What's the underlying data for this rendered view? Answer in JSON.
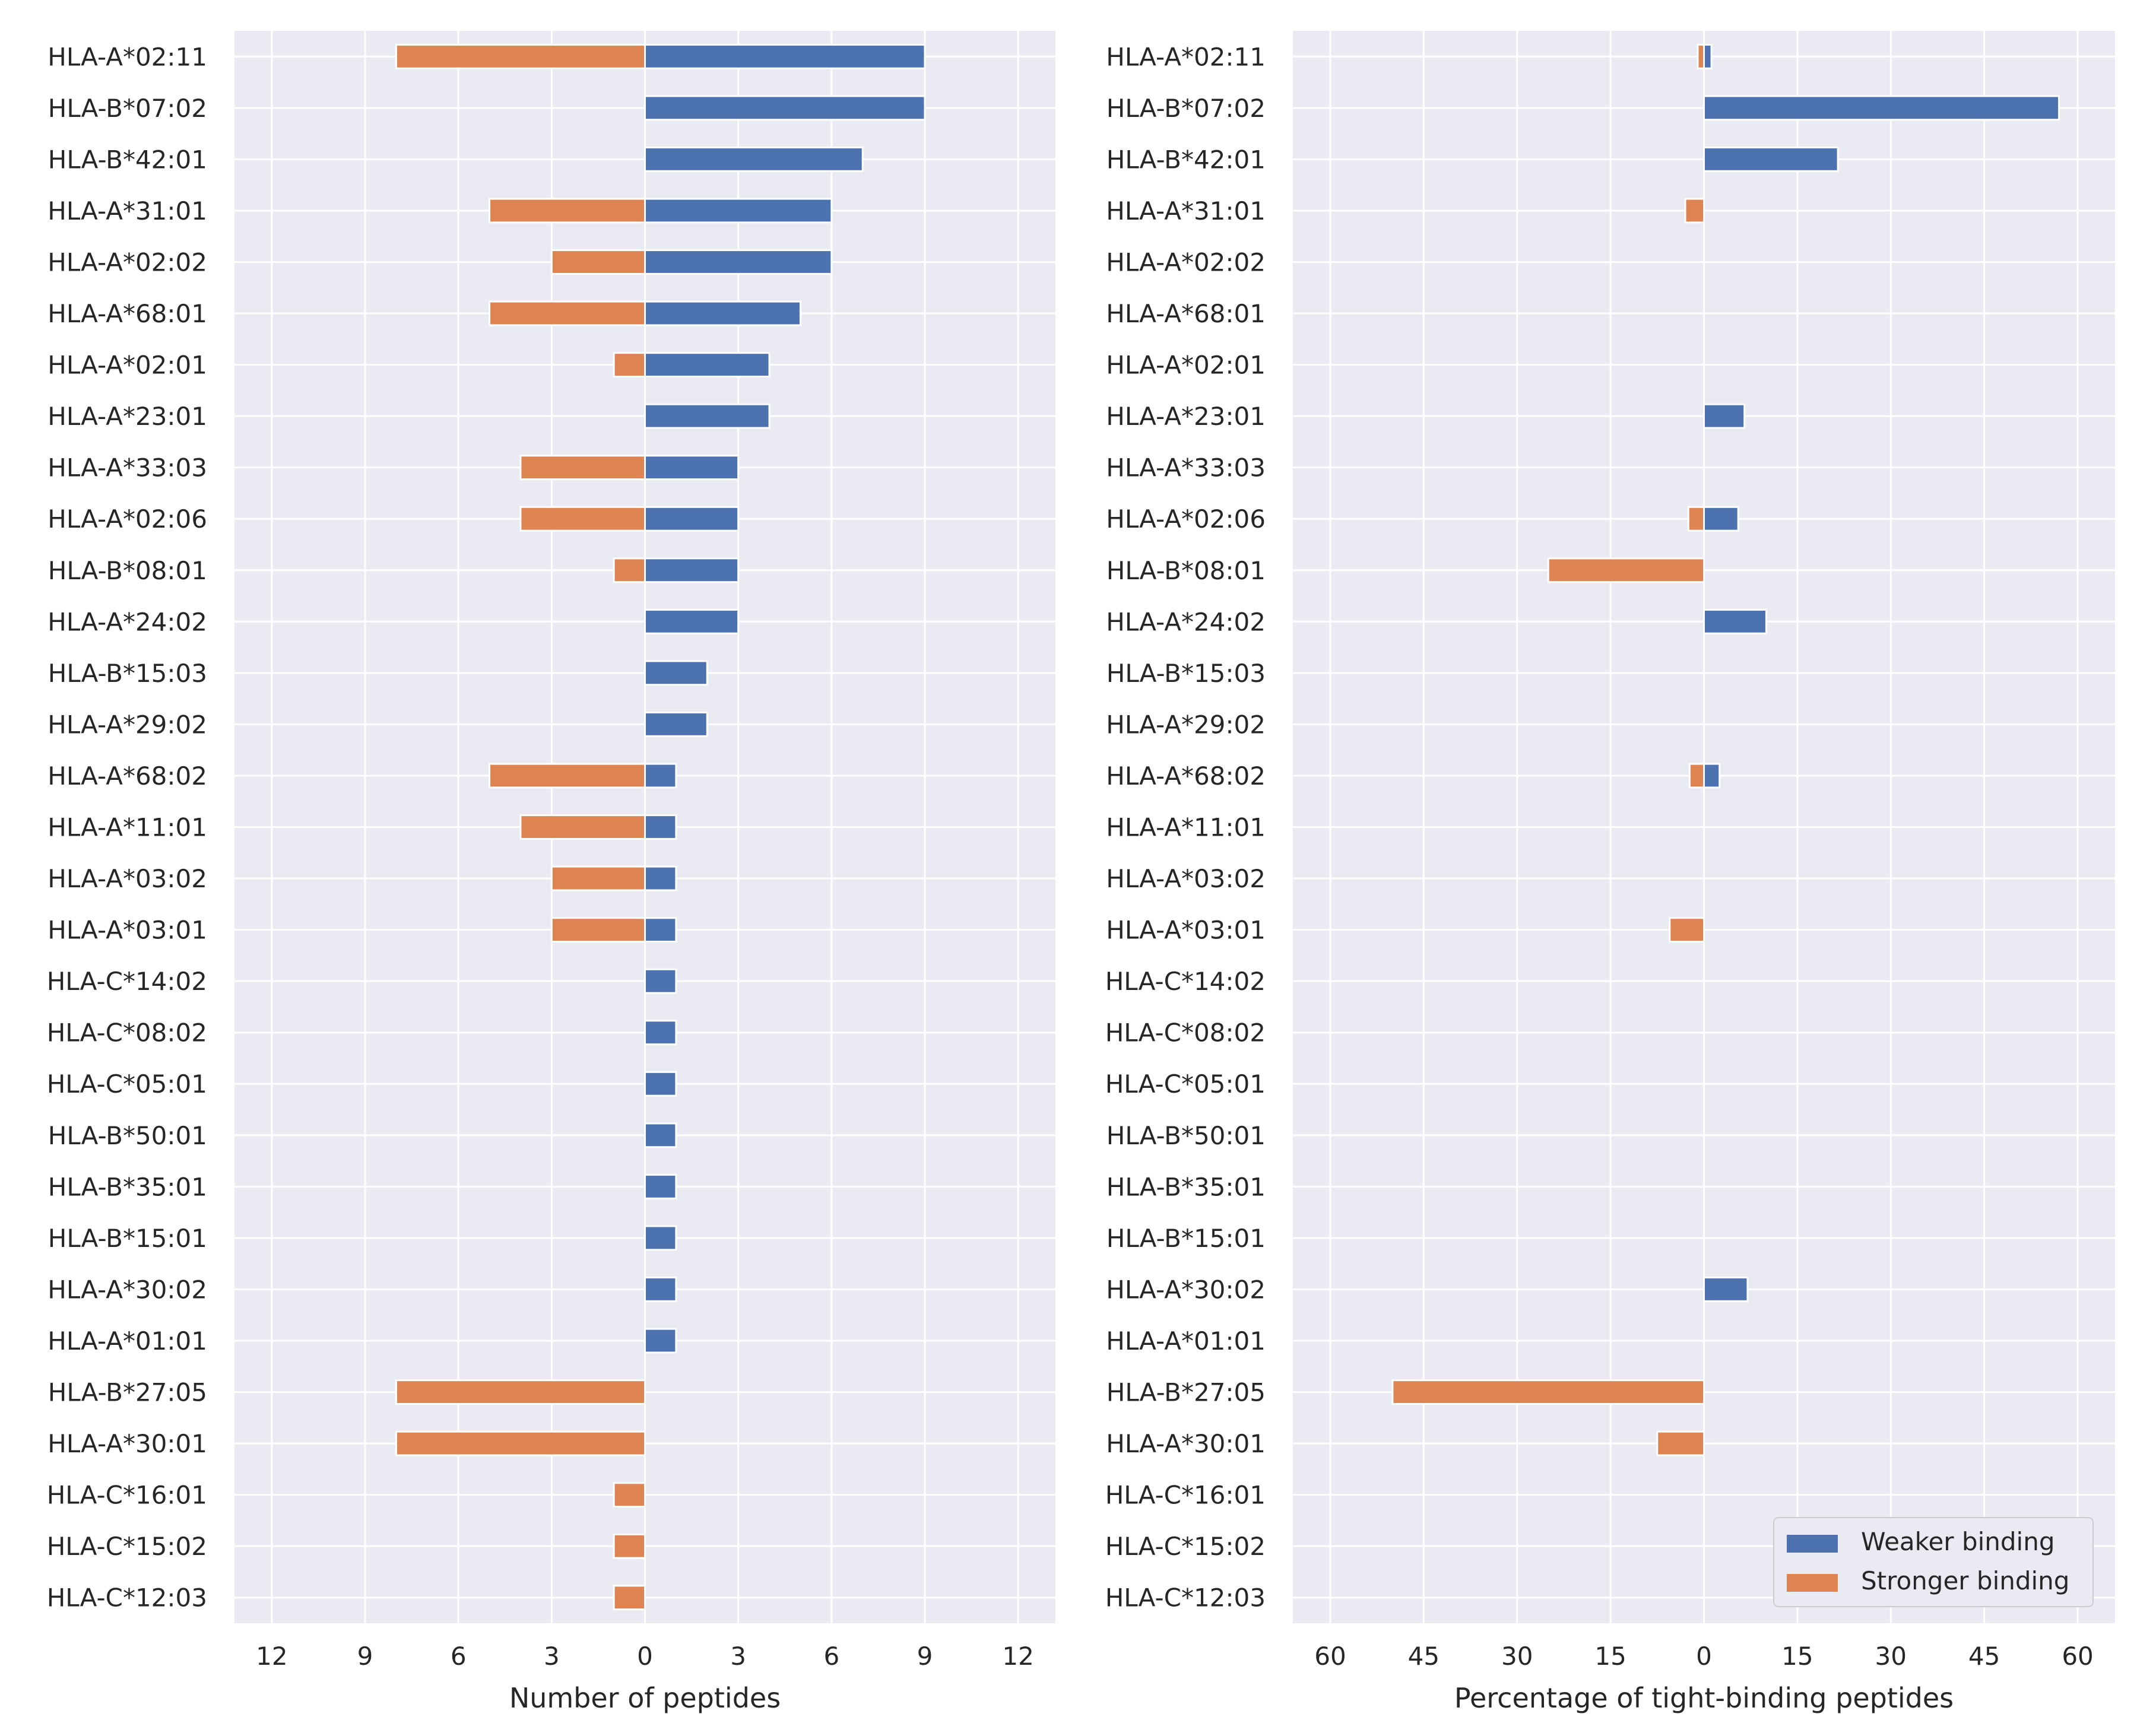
{
  "colors": {
    "weaker": "#4c72b0",
    "stronger": "#dd8452",
    "panel_bg": "#eaeaf2",
    "grid": "#ffffff",
    "text": "#262626"
  },
  "legend": {
    "placement": "bottom-right",
    "items": [
      {
        "label": "Weaker binding",
        "color": "#4c72b0"
      },
      {
        "label": "Stronger binding",
        "color": "#dd8452"
      }
    ]
  },
  "chart_data": [
    {
      "type": "bar",
      "orientation": "horizontal-diverging",
      "title": "",
      "xlabel": "Number of peptides",
      "ylabel": "",
      "xlim": [
        -13.2,
        13.2
      ],
      "xticks": [
        -12,
        -9,
        -6,
        -3,
        0,
        3,
        6,
        9,
        12
      ],
      "xtick_labels": [
        "12",
        "9",
        "6",
        "3",
        "0",
        "3",
        "6",
        "9",
        "12"
      ],
      "grid": true,
      "categories": [
        "HLA-A*02:11",
        "HLA-B*07:02",
        "HLA-B*42:01",
        "HLA-A*31:01",
        "HLA-A*02:02",
        "HLA-A*68:01",
        "HLA-A*02:01",
        "HLA-A*23:01",
        "HLA-A*33:03",
        "HLA-A*02:06",
        "HLA-B*08:01",
        "HLA-A*24:02",
        "HLA-B*15:03",
        "HLA-A*29:02",
        "HLA-A*68:02",
        "HLA-A*11:01",
        "HLA-A*03:02",
        "HLA-A*03:01",
        "HLA-C*14:02",
        "HLA-C*08:02",
        "HLA-C*05:01",
        "HLA-B*50:01",
        "HLA-B*35:01",
        "HLA-B*15:01",
        "HLA-A*30:02",
        "HLA-A*01:01",
        "HLA-B*27:05",
        "HLA-A*30:01",
        "HLA-C*16:01",
        "HLA-C*15:02",
        "HLA-C*12:03"
      ],
      "series": [
        {
          "name": "Weaker binding",
          "direction": "right",
          "values": [
            9,
            9,
            7,
            6,
            6,
            5,
            4,
            4,
            3,
            3,
            3,
            3,
            2,
            2,
            1,
            1,
            1,
            1,
            1,
            1,
            1,
            1,
            1,
            1,
            1,
            1,
            0,
            0,
            0,
            0,
            0
          ]
        },
        {
          "name": "Stronger binding",
          "direction": "left",
          "values": [
            8,
            0,
            0,
            5,
            3,
            5,
            1,
            0,
            4,
            4,
            1,
            0,
            0,
            0,
            5,
            4,
            3,
            3,
            0,
            0,
            0,
            0,
            0,
            0,
            0,
            0,
            8,
            8,
            1,
            1,
            1
          ]
        }
      ]
    },
    {
      "type": "bar",
      "orientation": "horizontal-diverging",
      "title": "",
      "xlabel": "Percentage of tight-binding peptides",
      "ylabel": "",
      "xlim": [
        -66,
        66
      ],
      "xticks": [
        -60,
        -45,
        -30,
        -15,
        0,
        15,
        30,
        45,
        60
      ],
      "xtick_labels": [
        "60",
        "45",
        "30",
        "15",
        "0",
        "15",
        "30",
        "45",
        "60"
      ],
      "grid": true,
      "categories": [
        "HLA-A*02:11",
        "HLA-B*07:02",
        "HLA-B*42:01",
        "HLA-A*31:01",
        "HLA-A*02:02",
        "HLA-A*68:01",
        "HLA-A*02:01",
        "HLA-A*23:01",
        "HLA-A*33:03",
        "HLA-A*02:06",
        "HLA-B*08:01",
        "HLA-A*24:02",
        "HLA-B*15:03",
        "HLA-A*29:02",
        "HLA-A*68:02",
        "HLA-A*11:01",
        "HLA-A*03:02",
        "HLA-A*03:01",
        "HLA-C*14:02",
        "HLA-C*08:02",
        "HLA-C*05:01",
        "HLA-B*50:01",
        "HLA-B*35:01",
        "HLA-B*15:01",
        "HLA-A*30:02",
        "HLA-A*01:01",
        "HLA-B*27:05",
        "HLA-A*30:01",
        "HLA-C*16:01",
        "HLA-C*15:02",
        "HLA-C*12:03"
      ],
      "series": [
        {
          "name": "Weaker binding",
          "direction": "right",
          "values": [
            1.2,
            57,
            21.5,
            0,
            0,
            0,
            0,
            6.5,
            0,
            5.5,
            0,
            10,
            0,
            0,
            2.5,
            0,
            0,
            0,
            0,
            0,
            0,
            0,
            0,
            0,
            7,
            0,
            0,
            0,
            0,
            0,
            0
          ]
        },
        {
          "name": "Stronger binding",
          "direction": "left",
          "values": [
            1,
            0,
            0,
            3,
            0,
            0,
            0,
            0,
            0,
            2.5,
            25,
            0,
            0,
            0,
            2.3,
            0,
            0,
            5.5,
            0,
            0,
            0,
            0,
            0,
            0,
            0,
            0,
            50,
            7.5,
            0,
            0,
            0
          ]
        }
      ]
    }
  ]
}
